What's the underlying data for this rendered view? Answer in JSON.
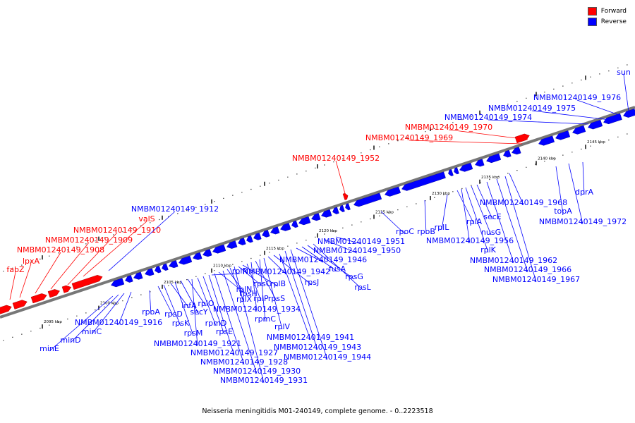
{
  "legend": {
    "forward_label": "Forward",
    "reverse_label": "Reverse",
    "forward_color": "#ff0000",
    "reverse_color": "#0000ff"
  },
  "caption": "Neisseria meningitidis M01-240149, complete genome. - 0..2223518",
  "ticks": [
    "2095 kbp",
    "2100 kbp",
    "2105 kbp",
    "2110 kbp",
    "2115 kbp",
    "2120 kbp",
    "2125 kbp",
    "2130 kbp",
    "2135 kbp",
    "2140 kbp",
    "2145 kbp"
  ],
  "forward_labels": [
    "fabZ",
    "lpxA",
    "NMBM01240149_1908",
    "NMBM01240149_1909",
    "NMBM01240149_1910",
    "valS",
    "NMBM01240149_1952",
    "NMBM01240149_1969",
    "NMBM01240149_1970"
  ],
  "reverse_labels_upper": [
    "NMBM01240149_1912",
    "sun",
    "NMBM01240149_1976",
    "NMBM01240149_1975",
    "NMBM01240149_1974"
  ],
  "reverse_labels_lower": [
    "minE",
    "minD",
    "minC",
    "NMBM01240149_1916",
    "rpoA",
    "rpsD",
    "rpsK",
    "infA",
    "rpsM",
    "secY",
    "rplO",
    "NMBM01240149_1921",
    "rpmD",
    "rpsE",
    "NMBM01240149_1927",
    "rplR",
    "NMBM01240149_1928",
    "rpsH",
    "NMBM01240149_1930",
    "rplN",
    "rplX",
    "NMBM01240149_1931",
    "rpsC",
    "rplB",
    "rplP",
    "NMBM01240149_1934",
    "rpsS",
    "rpmC",
    "rplV",
    "NMBM01240149_1942",
    "rpsJ",
    "NMBM01240149_1941",
    "NMBM01240149_1943",
    "NMBM01240149_1944",
    "NMBM01240149_1946",
    "fusA",
    "rpsG",
    "rpsL",
    "NMBM01240149_1950",
    "NMBM01240149_1951",
    "rpoC",
    "rpoB",
    "rplL",
    "rplA",
    "NMBM01240149_1956",
    "rplK",
    "nusG",
    "secE",
    "NMBM01240149_1962",
    "NMBM01240149_1966",
    "NMBM01240149_1967",
    "NMBM01240149_1968",
    "topA",
    "NMBM01240149_1972",
    "dprA"
  ]
}
